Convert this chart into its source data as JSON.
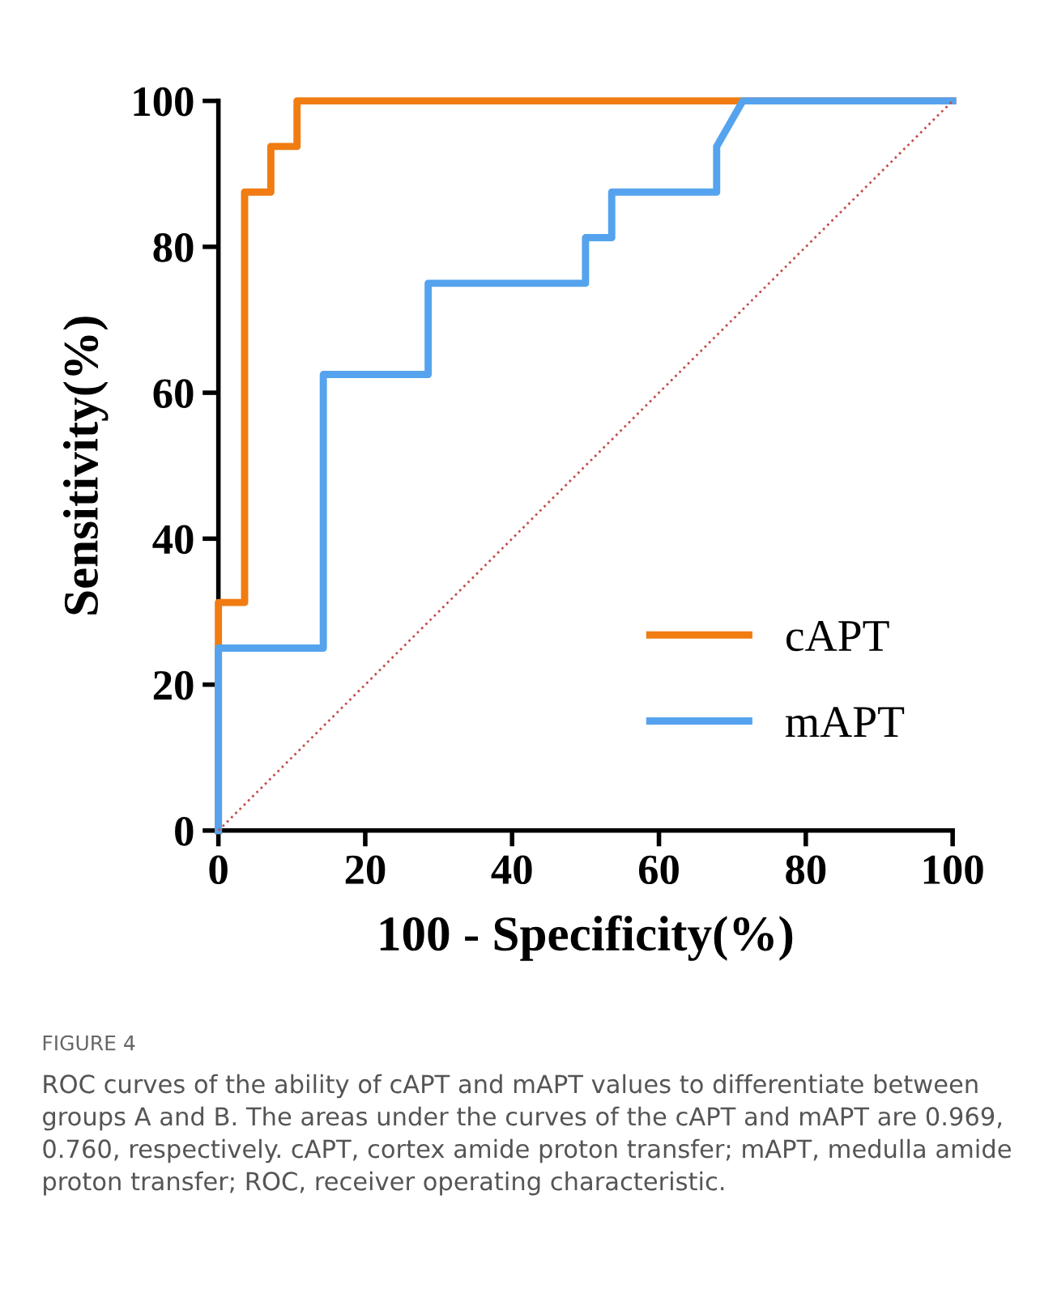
{
  "chart_data": {
    "type": "line",
    "xlabel": "100 - Specificity(%)",
    "ylabel": "Sensitivity(%)",
    "xlim": [
      0,
      100
    ],
    "ylim": [
      0,
      100
    ],
    "xticks": [
      0,
      20,
      40,
      60,
      80,
      100
    ],
    "yticks": [
      0,
      20,
      40,
      60,
      80,
      100
    ],
    "grid": false,
    "legend": "bottom right",
    "marker": "none",
    "line_style": "solid",
    "series": [
      {
        "name": "cAPT",
        "color": "#f07c12",
        "x": [
          0,
          0,
          3.57,
          3.57,
          7.14,
          7.14,
          10.71,
          10.71,
          100
        ],
        "values": [
          0,
          31.25,
          31.25,
          87.5,
          87.5,
          93.75,
          93.75,
          100,
          100
        ]
      },
      {
        "name": "mAPT",
        "color": "#55a3ee",
        "x": [
          0,
          0,
          14.29,
          14.29,
          28.57,
          28.57,
          50,
          50,
          53.57,
          53.57,
          67.86,
          67.86,
          71.43,
          100
        ],
        "values": [
          0,
          25,
          25,
          62.5,
          62.5,
          75,
          75,
          81.25,
          81.25,
          87.5,
          87.5,
          93.75,
          100,
          100
        ]
      },
      {
        "color": "#c0504d",
        "x": [
          0,
          100
        ],
        "values": [
          0,
          100
        ],
        "line_style": "dotted"
      }
    ],
    "annotations": [
      "FIGURE 4",
      "ROC curves of the ability of cAPT and mAPT values to differentiate between groups A and B. The areas under the curves of the cAPT and mAPT are 0.969, 0.760, respectively. cAPT, cortex amide proton transfer; mAPT, medulla amide proton transfer; ROC, receiver operating characteristic."
    ]
  }
}
